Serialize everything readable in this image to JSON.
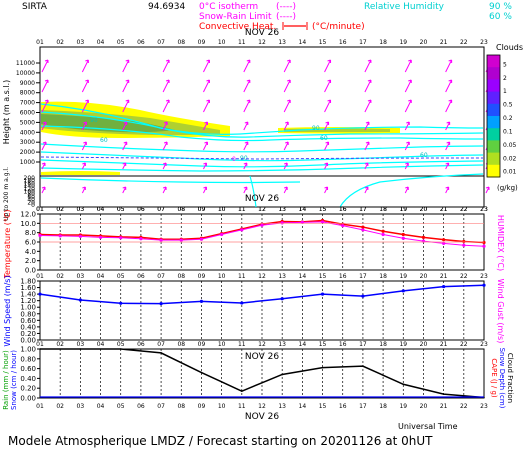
{
  "header": {
    "site": "SIRTA",
    "coord": "94.6934",
    "legend_isotherm": "0°C isotherm",
    "legend_isotherm_sym": "(----)",
    "legend_snowrain": "Snow-Rain Limit",
    "legend_snowrain_sym": "(----)",
    "legend_convective": "Convective Heat.",
    "legend_convective_unit": "(°C/minute)",
    "legend_rh": "Relative Humidity",
    "legend_rh_90": "90 %",
    "legend_rh_60": "60 %"
  },
  "footer": {
    "universal_time": "Universal Time",
    "caption": "Modele Atmospherique LMDZ / Forecast starting on 20201126 at 0hUT"
  },
  "colors": {
    "magenta": "#ff00ff",
    "cyan": "#00ffff",
    "red": "#ff0000",
    "blue": "#0000ff",
    "yellow": "#ffff00",
    "green_light": "#b0d030",
    "green": "#70b040",
    "black": "#000000",
    "grey": "#a0a0a0"
  },
  "chart_data": [
    {
      "type": "heatmap",
      "date_label": "NOV 26",
      "x_hours": [
        "01",
        "02",
        "03",
        "04",
        "05",
        "06",
        "07",
        "08",
        "09",
        "10",
        "11",
        "12",
        "13",
        "14",
        "15",
        "16",
        "17",
        "18",
        "19",
        "20",
        "21",
        "22",
        "23"
      ],
      "ylabel": "Height (m a.s.l.)",
      "ylabel_lower": "Up to 200 m a.g.l.",
      "y_ticks_upper": [
        "11000",
        "10000",
        "9000",
        "8000",
        "7000",
        "6000",
        "5000",
        "4000",
        "3000",
        "2000",
        "1000"
      ],
      "y_ticks_lower": [
        "200",
        "180",
        "160",
        "140",
        "120",
        "100",
        "80",
        "60",
        "40",
        "20",
        "0"
      ],
      "colorbar_title": "Clouds",
      "colorbar_unit": "(g/kg)",
      "colorbar_labels": [
        "5",
        "2",
        "1",
        "0.5",
        "0.2",
        "0.1",
        "0.05",
        "0.02",
        "0.01"
      ],
      "colorbar_colors": [
        "#d000d0",
        "#b000d0",
        "#9a00ff",
        "#6020ff",
        "#2050ff",
        "#00a0ff",
        "#00d0a0",
        "#60d040",
        "#b0e020",
        "#ffff00"
      ],
      "rh_contour_labels": [
        "90",
        "60",
        "90",
        "60",
        "90",
        "60"
      ],
      "isotherm_label": "0"
    },
    {
      "type": "line",
      "date_label": "NOV 26",
      "ylabel": "Temperature (°C)",
      "ylabel_right": "HUMIDEX (°C)",
      "y_ticks": [
        "12.0",
        "10.0",
        "8.0",
        "6.0",
        "4.0",
        "2.0",
        "0.0"
      ],
      "ylim": [
        0,
        12
      ],
      "x": [
        1,
        2,
        3,
        4,
        5,
        6,
        7,
        8,
        9,
        10,
        11,
        12,
        13,
        14,
        15,
        16,
        17,
        18,
        19,
        20,
        21,
        22,
        23
      ],
      "series": [
        {
          "name": "Temperature",
          "color": "#ff0000",
          "values": [
            7.6,
            7.5,
            7.5,
            7.3,
            7.1,
            7.0,
            6.6,
            6.6,
            6.8,
            7.8,
            8.8,
            9.8,
            10.4,
            10.3,
            10.6,
            9.8,
            9.2,
            8.3,
            7.6,
            7.0,
            6.5,
            6.1,
            5.9
          ]
        },
        {
          "name": "Humidex",
          "color": "#ff00ff",
          "values": [
            7.4,
            7.3,
            7.2,
            7.0,
            6.9,
            6.7,
            6.4,
            6.4,
            6.6,
            7.6,
            8.6,
            9.6,
            10.1,
            10.2,
            10.3,
            9.5,
            8.6,
            7.6,
            6.8,
            6.2,
            5.7,
            5.3,
            5.1
          ]
        }
      ]
    },
    {
      "type": "line",
      "ylabel": "Wind Speed (m/s)",
      "ylabel_right": "Wind Gust (m/s)",
      "y_ticks": [
        "1.80",
        "1.60",
        "1.40",
        "1.20",
        "1.00",
        "0.80",
        "0.60",
        "0.40",
        "0.20",
        "0.00"
      ],
      "ylim": [
        0,
        1.8
      ],
      "x": [
        1,
        3,
        5,
        7,
        9,
        11,
        13,
        15,
        17,
        19,
        21,
        23
      ],
      "series": [
        {
          "name": "Wind Speed",
          "color": "#0000ff",
          "values": [
            1.4,
            1.22,
            1.12,
            1.11,
            1.18,
            1.13,
            1.26,
            1.4,
            1.34,
            1.5,
            1.63,
            1.67
          ]
        }
      ]
    },
    {
      "type": "line",
      "date_label": "NOV 26",
      "ylabel": "Rain (mm / hour)",
      "ylabel_2": "Snow (cm / hour)",
      "ylabel_right": "CAPE (J / g)",
      "ylabel_right_2": "Snow Depth (cm)",
      "ylabel_right_3": "Cloud Fraction",
      "y_ticks": [
        "1.00",
        "0.80",
        "0.60",
        "0.40",
        "0.20",
        "0.00"
      ],
      "ylim": [
        0,
        1
      ],
      "x": [
        1,
        3,
        5,
        7,
        9,
        11,
        13,
        15,
        17,
        19,
        21,
        23
      ],
      "series": [
        {
          "name": "Cloud Fraction",
          "color": "#000000",
          "values": [
            1.0,
            1.0,
            1.0,
            0.92,
            0.52,
            0.14,
            0.48,
            0.62,
            0.65,
            0.28,
            0.08,
            0.01
          ]
        }
      ]
    }
  ]
}
